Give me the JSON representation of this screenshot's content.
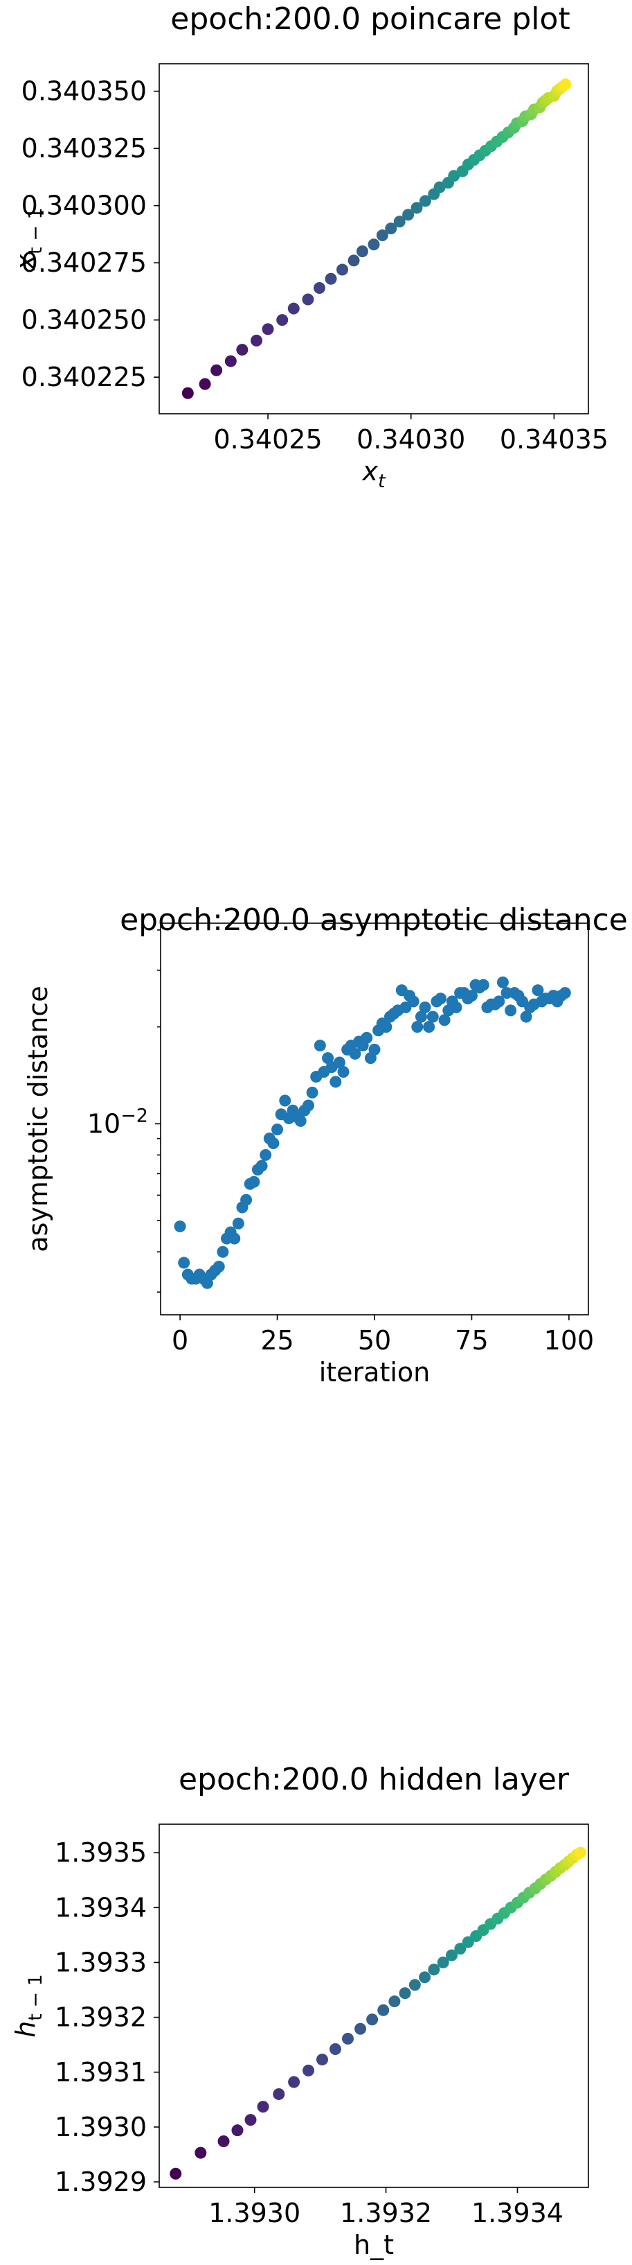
{
  "chart_data": [
    {
      "type": "scatter",
      "title": "epoch:200.0 poincare plot",
      "xlabel_base": "x",
      "xlabel_sub": "t",
      "ylabel_base": "x",
      "ylabel_sub": "t − 1",
      "xlim": [
        0.340212,
        0.340362
      ],
      "ylim": [
        0.340209,
        0.340362
      ],
      "xticks": [
        0.34025,
        0.3403,
        0.34035
      ],
      "xtick_labels": [
        "0.34025",
        "0.34030",
        "0.34035"
      ],
      "yticks": [
        0.340225,
        0.34025,
        0.340275,
        0.3403,
        0.340325,
        0.34035
      ],
      "ytick_labels": [
        "0.340225",
        "0.340250",
        "0.340275",
        "0.340300",
        "0.340325",
        "0.340350"
      ],
      "colormap": "viridis",
      "x": [
        0.340222,
        0.340228,
        0.340232,
        0.340237,
        0.340241,
        0.340246,
        0.34025,
        0.340255,
        0.340259,
        0.340264,
        0.340268,
        0.340272,
        0.340276,
        0.34028,
        0.340283,
        0.340287,
        0.34029,
        0.340293,
        0.340296,
        0.340299,
        0.340302,
        0.340305,
        0.340308,
        0.34031,
        0.340313,
        0.340315,
        0.340318,
        0.34032,
        0.340322,
        0.340324,
        0.340326,
        0.340328,
        0.34033,
        0.340332,
        0.340334,
        0.340336,
        0.340337,
        0.340339,
        0.34034,
        0.340342,
        0.340343,
        0.340345,
        0.340346,
        0.340347,
        0.340348,
        0.34035,
        0.340351,
        0.340352,
        0.340353,
        0.340354
      ],
      "y": [
        0.340218,
        0.340222,
        0.340228,
        0.340232,
        0.340237,
        0.340241,
        0.340246,
        0.34025,
        0.340255,
        0.340259,
        0.340264,
        0.340268,
        0.340272,
        0.340276,
        0.34028,
        0.340283,
        0.340287,
        0.34029,
        0.340293,
        0.340296,
        0.340299,
        0.340302,
        0.340305,
        0.340308,
        0.34031,
        0.340313,
        0.340315,
        0.340318,
        0.34032,
        0.340322,
        0.340324,
        0.340326,
        0.340328,
        0.34033,
        0.340332,
        0.340334,
        0.340336,
        0.340337,
        0.340339,
        0.34034,
        0.340342,
        0.340343,
        0.340345,
        0.340346,
        0.340347,
        0.340348,
        0.34035,
        0.340351,
        0.340352,
        0.340353
      ]
    },
    {
      "type": "scatter",
      "title": "epoch:200.0 asymptotic distance",
      "xlabel": "iteration",
      "ylabel": "asymptotic distance",
      "yscale": "log",
      "xlim": [
        -5,
        105
      ],
      "ylim": [
        0.00255,
        0.042
      ],
      "xticks": [
        0,
        25,
        50,
        75,
        100
      ],
      "xtick_labels": [
        "0",
        "25",
        "50",
        "75",
        "100"
      ],
      "yticks": [
        0.01
      ],
      "ytick_labels": [
        "10^-2"
      ],
      "color": "#1f77b4",
      "x": [
        0,
        1,
        2,
        3,
        4,
        5,
        6,
        7,
        8,
        9,
        10,
        11,
        12,
        13,
        14,
        15,
        16,
        17,
        18,
        19,
        20,
        21,
        22,
        23,
        24,
        25,
        26,
        27,
        28,
        29,
        30,
        31,
        32,
        33,
        34,
        35,
        36,
        37,
        38,
        39,
        40,
        41,
        42,
        43,
        44,
        45,
        46,
        47,
        48,
        49,
        50,
        51,
        52,
        53,
        54,
        55,
        56,
        57,
        58,
        59,
        60,
        61,
        62,
        63,
        64,
        65,
        66,
        67,
        68,
        69,
        70,
        71,
        72,
        73,
        74,
        75,
        76,
        77,
        78,
        79,
        80,
        81,
        82,
        83,
        84,
        85,
        86,
        87,
        88,
        89,
        90,
        91,
        92,
        93,
        94,
        95,
        96,
        97,
        98,
        99
      ],
      "y": [
        0.0048,
        0.0037,
        0.0034,
        0.0033,
        0.0033,
        0.0034,
        0.0033,
        0.0032,
        0.0034,
        0.0035,
        0.0036,
        0.004,
        0.0044,
        0.0046,
        0.0044,
        0.0049,
        0.0055,
        0.0058,
        0.0065,
        0.0066,
        0.0072,
        0.0074,
        0.008,
        0.009,
        0.0087,
        0.0096,
        0.0107,
        0.0118,
        0.0104,
        0.011,
        0.0105,
        0.0102,
        0.011,
        0.0114,
        0.0125,
        0.014,
        0.0175,
        0.0145,
        0.016,
        0.015,
        0.0135,
        0.0155,
        0.0145,
        0.017,
        0.0175,
        0.0165,
        0.018,
        0.0175,
        0.0185,
        0.016,
        0.017,
        0.0195,
        0.0205,
        0.02,
        0.0215,
        0.022,
        0.0225,
        0.026,
        0.023,
        0.025,
        0.024,
        0.02,
        0.0215,
        0.023,
        0.02,
        0.0215,
        0.024,
        0.0245,
        0.021,
        0.0225,
        0.024,
        0.023,
        0.0255,
        0.0255,
        0.0245,
        0.025,
        0.027,
        0.0265,
        0.027,
        0.023,
        0.0235,
        0.0235,
        0.024,
        0.0275,
        0.0255,
        0.0225,
        0.0255,
        0.025,
        0.024,
        0.0215,
        0.023,
        0.0235,
        0.026,
        0.024,
        0.0245,
        0.0245,
        0.025,
        0.024,
        0.025,
        0.0255
      ]
    },
    {
      "type": "scatter",
      "title": "epoch:200.0 hidden layer",
      "xlabel": "h_t",
      "ylabel_base": "h",
      "ylabel_sub": "t − 1",
      "xlim": [
        1.392855,
        1.393508
      ],
      "ylim": [
        1.39289,
        1.393552
      ],
      "xticks": [
        1.393,
        1.3932,
        1.3934
      ],
      "xtick_labels": [
        "1.3930",
        "1.3932",
        "1.3934"
      ],
      "yticks": [
        1.3929,
        1.393,
        1.3931,
        1.3932,
        1.3933,
        1.3934,
        1.3935
      ],
      "ytick_labels": [
        "1.3929",
        "1.3930",
        "1.3931",
        "1.3932",
        "1.3933",
        "1.3934",
        "1.3935"
      ],
      "colormap": "viridis",
      "x": [
        1.39288,
        1.392918,
        1.392953,
        1.392974,
        1.392994,
        1.393013,
        1.393037,
        1.39306,
        1.393082,
        1.393103,
        1.393123,
        1.393142,
        1.393161,
        1.393179,
        1.393196,
        1.393213,
        1.393229,
        1.393244,
        1.393259,
        1.393273,
        1.393287,
        1.3933,
        1.393313,
        1.393325,
        1.393337,
        1.393348,
        1.393359,
        1.39337,
        1.39338,
        1.39339,
        1.3934,
        1.393409,
        1.393418,
        1.393427,
        1.393435,
        1.393443,
        1.393451,
        1.393458,
        1.393465,
        1.393472,
        1.393478,
        1.393484,
        1.39349,
        1.393496
      ],
      "y": [
        1.392915,
        1.392953,
        1.392974,
        1.392994,
        1.393013,
        1.393037,
        1.39306,
        1.393082,
        1.393103,
        1.393123,
        1.393142,
        1.393161,
        1.393179,
        1.393196,
        1.393213,
        1.393229,
        1.393244,
        1.393259,
        1.393273,
        1.393287,
        1.3933,
        1.393313,
        1.393325,
        1.393337,
        1.393348,
        1.393359,
        1.39337,
        1.39338,
        1.39339,
        1.3934,
        1.393409,
        1.393418,
        1.393427,
        1.393435,
        1.393443,
        1.393451,
        1.393458,
        1.393465,
        1.393472,
        1.393478,
        1.393484,
        1.39349,
        1.393496,
        1.3935
      ]
    }
  ]
}
